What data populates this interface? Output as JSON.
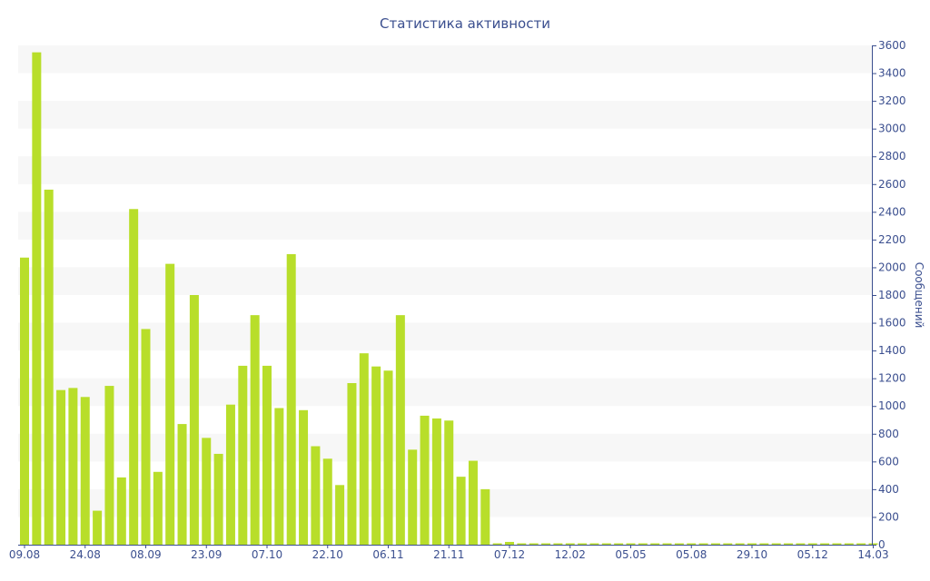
{
  "colors": {
    "bar": "#b8de2a",
    "band": "#f7f7f7",
    "axis": "#3b4f8f",
    "background": "#ffffff"
  },
  "chart_data": {
    "type": "bar",
    "title": "Статистика активности",
    "xlabel": "",
    "ylabel": "Сообщений",
    "y_axis_side": "right",
    "ylim": [
      0,
      3600
    ],
    "y_ticks": [
      0,
      200,
      400,
      600,
      800,
      1000,
      1200,
      1400,
      1600,
      1800,
      2000,
      2200,
      2400,
      2600,
      2800,
      3000,
      3200,
      3400,
      3600
    ],
    "grid": "alternating horizontal bands",
    "x_tick_labels": [
      {
        "label": "09.08",
        "index": 0
      },
      {
        "label": "24.08",
        "index": 5
      },
      {
        "label": "08.09",
        "index": 10
      },
      {
        "label": "23.09",
        "index": 15
      },
      {
        "label": "07.10",
        "index": 20
      },
      {
        "label": "22.10",
        "index": 25
      },
      {
        "label": "06.11",
        "index": 30
      },
      {
        "label": "21.11",
        "index": 35
      },
      {
        "label": "07.12",
        "index": 40
      },
      {
        "label": "12.02",
        "index": 45
      },
      {
        "label": "05.05",
        "index": 50
      },
      {
        "label": "05.08",
        "index": 55
      },
      {
        "label": "29.10",
        "index": 60
      },
      {
        "label": "05.12",
        "index": 65
      },
      {
        "label": "14.03",
        "index": 70
      }
    ],
    "values": [
      2070,
      3550,
      2560,
      1115,
      1130,
      1065,
      245,
      1145,
      485,
      2420,
      1555,
      525,
      2025,
      870,
      1800,
      770,
      655,
      1010,
      1290,
      1655,
      1290,
      985,
      2095,
      970,
      710,
      620,
      430,
      1165,
      1380,
      1285,
      1255,
      1655,
      685,
      930,
      910,
      895,
      490,
      605,
      400,
      8,
      20,
      8,
      6,
      6,
      6,
      6,
      6,
      6,
      6,
      6,
      6,
      6,
      6,
      6,
      6,
      6,
      6,
      6,
      6,
      6,
      6,
      6,
      6,
      6,
      6,
      6,
      6,
      6,
      6,
      6,
      6
    ]
  }
}
